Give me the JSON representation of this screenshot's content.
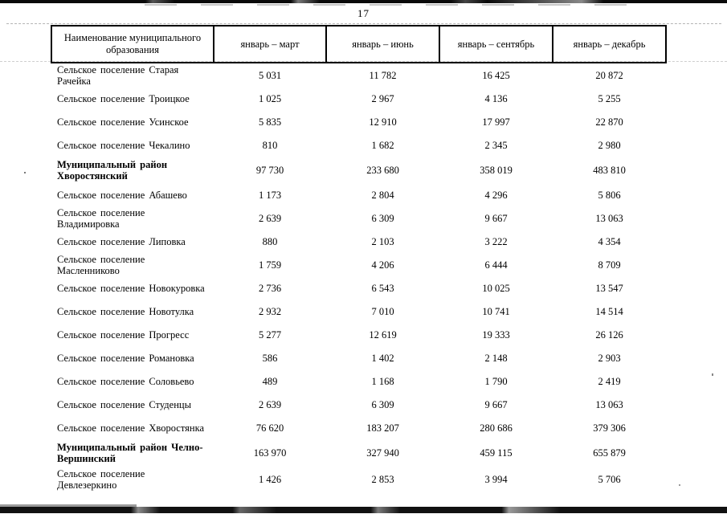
{
  "page": {
    "number": "17"
  },
  "table": {
    "header": {
      "name_col": "Наименование муниципального образования",
      "period_cols": [
        "январь – март",
        "январь – июнь",
        "январь – сентябрь",
        "январь – декабрь"
      ]
    },
    "rows": [
      {
        "name": "Сельское поселение Старая Рачейка",
        "district": false,
        "values": [
          "5 031",
          "11 782",
          "16 425",
          "20 872"
        ]
      },
      {
        "name": "Сельское поселение Троицкое",
        "district": false,
        "values": [
          "1 025",
          "2 967",
          "4 136",
          "5 255"
        ]
      },
      {
        "name": "Сельское поселение Усинское",
        "district": false,
        "values": [
          "5 835",
          "12 910",
          "17 997",
          "22 870"
        ]
      },
      {
        "name": "Сельское поселение Чекалино",
        "district": false,
        "values": [
          "810",
          "1 682",
          "2 345",
          "2 980"
        ]
      },
      {
        "name": "Муниципальный район Хворостянский",
        "district": true,
        "values": [
          "97 730",
          "233 680",
          "358 019",
          "483 810"
        ]
      },
      {
        "name": "Сельское поселение Абашево",
        "district": false,
        "values": [
          "1 173",
          "2 804",
          "4 296",
          "5 806"
        ]
      },
      {
        "name": "Сельское поселение Владимировка",
        "district": false,
        "values": [
          "2 639",
          "6 309",
          "9 667",
          "13 063"
        ]
      },
      {
        "name": "Сельское поселение Липовка",
        "district": false,
        "values": [
          "880",
          "2 103",
          "3 222",
          "4 354"
        ]
      },
      {
        "name": "Сельское поселение Масленниково",
        "district": false,
        "values": [
          "1 759",
          "4 206",
          "6 444",
          "8 709"
        ]
      },
      {
        "name": "Сельское поселение Новокуровка",
        "district": false,
        "values": [
          "2 736",
          "6 543",
          "10 025",
          "13 547"
        ]
      },
      {
        "name": "Сельское поселение Новотулка",
        "district": false,
        "values": [
          "2 932",
          "7 010",
          "10 741",
          "14 514"
        ]
      },
      {
        "name": "Сельское поселение Прогресс",
        "district": false,
        "values": [
          "5 277",
          "12 619",
          "19 333",
          "26 126"
        ]
      },
      {
        "name": "Сельское поселение Романовка",
        "district": false,
        "values": [
          "586",
          "1 402",
          "2 148",
          "2 903"
        ]
      },
      {
        "name": "Сельское поселение Соловьево",
        "district": false,
        "values": [
          "489",
          "1 168",
          "1 790",
          "2 419"
        ]
      },
      {
        "name": "Сельское поселение Студенцы",
        "district": false,
        "values": [
          "2 639",
          "6 309",
          "9 667",
          "13 063"
        ]
      },
      {
        "name": "Сельское поселение Хворостянка",
        "district": false,
        "values": [
          "76 620",
          "183 207",
          "280 686",
          "379 306"
        ]
      },
      {
        "name": "Муниципальный район Челно-Вершинский",
        "district": true,
        "values": [
          "163 970",
          "327 940",
          "459 115",
          "655 879"
        ]
      },
      {
        "name": "Сельское поселение Девлезеркино",
        "district": false,
        "values": [
          "1 426",
          "2 853",
          "3 994",
          "5 706"
        ]
      }
    ]
  }
}
